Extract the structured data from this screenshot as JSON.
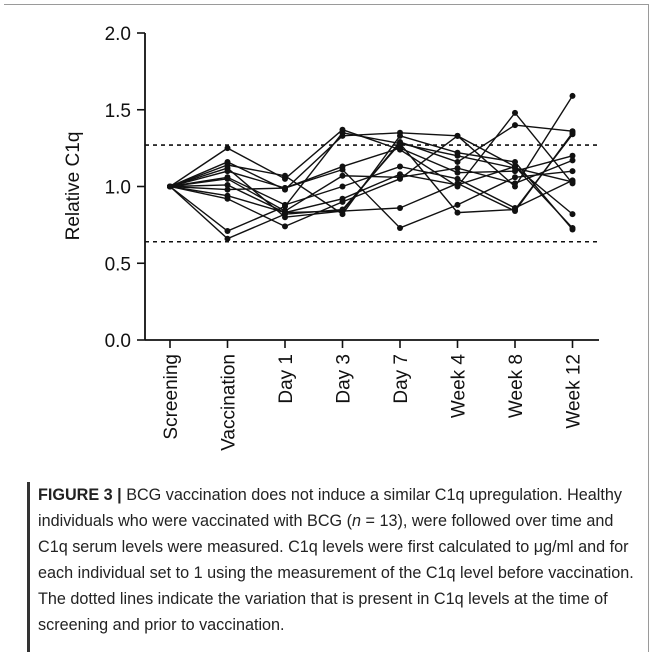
{
  "figure": {
    "label": "FIGURE 3 |",
    "caption_title": "BCG vaccination does not induce a similar C1q upregulation.",
    "caption_a": "Healthy individuals who were vaccinated with BCG (",
    "caption_n": "n",
    "caption_b": " = 13), were followed over time and C1q serum levels were measured. C1q levels were first calculated to μg/ml and for each individual set to 1 using the measurement of the C1q level before vaccination. The dotted lines indicate the variation that is present in C1q levels at the time of screening and prior to vaccination."
  },
  "chart_data": {
    "type": "line",
    "ylabel": "Relative  C1q",
    "xlabel": "",
    "ylim": [
      0.0,
      2.0
    ],
    "yticks": [
      "0.0",
      "0.5",
      "1.0",
      "1.5",
      "2.0"
    ],
    "ytick_values": [
      0.0,
      0.5,
      1.0,
      1.5,
      2.0
    ],
    "categories": [
      "Screening",
      "Vaccination",
      "Day 1",
      "Day 3",
      "Day 7",
      "Week 4",
      "Week 8",
      "Week 12"
    ],
    "reference_lines": [
      1.27,
      0.64
    ],
    "grid": false,
    "legend": "none",
    "series": [
      {
        "values": [
          1.0,
          1.25,
          1.05,
          1.37,
          1.24,
          1.0,
          1.48,
          1.02
        ]
      },
      {
        "values": [
          1.0,
          1.16,
          0.98,
          1.33,
          1.35,
          1.33,
          1.0,
          1.59
        ]
      },
      {
        "values": [
          1.0,
          1.14,
          1.07,
          0.82,
          1.33,
          1.22,
          1.16,
          0.72
        ]
      },
      {
        "values": [
          1.0,
          1.12,
          0.8,
          0.84,
          1.29,
          1.16,
          1.4,
          1.36
        ]
      },
      {
        "values": [
          1.0,
          1.1,
          0.99,
          1.13,
          1.25,
          1.09,
          1.1,
          1.2
        ]
      },
      {
        "values": [
          1.0,
          1.06,
          0.88,
          1.0,
          1.13,
          1.05,
          0.86,
          1.04
        ]
      },
      {
        "values": [
          1.0,
          1.05,
          0.84,
          1.07,
          1.06,
          1.12,
          1.02,
          1.17
        ]
      },
      {
        "values": [
          1.0,
          1.01,
          0.83,
          0.92,
          1.08,
          1.01,
          1.13,
          0.82
        ]
      },
      {
        "values": [
          1.0,
          0.98,
          0.99,
          1.11,
          0.73,
          0.88,
          1.06,
          1.1
        ]
      },
      {
        "values": [
          1.0,
          0.94,
          0.83,
          0.84,
          0.86,
          1.02,
          0.84,
          1.35
        ]
      },
      {
        "values": [
          1.0,
          0.92,
          0.74,
          0.9,
          1.05,
          1.33,
          1.13,
          0.73
        ]
      },
      {
        "values": [
          1.0,
          0.71,
          0.87,
          1.35,
          1.28,
          0.83,
          0.85,
          1.34
        ]
      },
      {
        "values": [
          1.0,
          0.66,
          0.82,
          0.85,
          1.28,
          1.2,
          1.12,
          1.03
        ]
      }
    ]
  }
}
